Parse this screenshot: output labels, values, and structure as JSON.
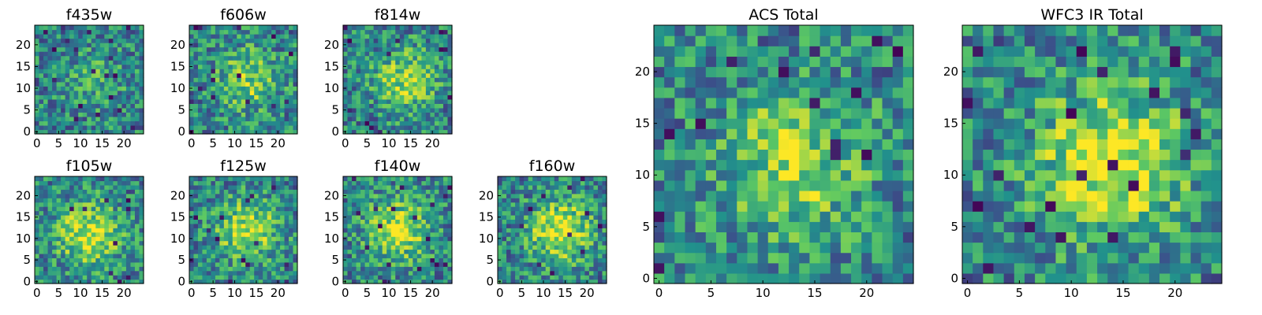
{
  "chart_data": [
    {
      "type": "heatmap",
      "title": "f435w",
      "grid": [
        25,
        25
      ],
      "xlim": [
        0,
        25
      ],
      "ylim": [
        0,
        25
      ],
      "xticks": [
        0,
        5,
        10,
        15,
        20
      ],
      "yticks": [
        0,
        5,
        10,
        15,
        20
      ],
      "colormap": "viridis"
    },
    {
      "type": "heatmap",
      "title": "f606w",
      "grid": [
        25,
        25
      ],
      "xlim": [
        0,
        25
      ],
      "ylim": [
        0,
        25
      ],
      "xticks": [
        0,
        5,
        10,
        15,
        20
      ],
      "yticks": [
        0,
        5,
        10,
        15,
        20
      ],
      "colormap": "viridis"
    },
    {
      "type": "heatmap",
      "title": "f814w",
      "grid": [
        25,
        25
      ],
      "xlim": [
        0,
        25
      ],
      "ylim": [
        0,
        25
      ],
      "xticks": [
        0,
        5,
        10,
        15,
        20
      ],
      "yticks": [
        0,
        5,
        10,
        15,
        20
      ],
      "colormap": "viridis"
    },
    {
      "type": "heatmap",
      "title": "f105w",
      "grid": [
        25,
        25
      ],
      "xlim": [
        0,
        25
      ],
      "ylim": [
        0,
        25
      ],
      "xticks": [
        0,
        5,
        10,
        15,
        20
      ],
      "yticks": [
        0,
        5,
        10,
        15,
        20
      ],
      "colormap": "viridis"
    },
    {
      "type": "heatmap",
      "title": "f125w",
      "grid": [
        25,
        25
      ],
      "xlim": [
        0,
        25
      ],
      "ylim": [
        0,
        25
      ],
      "xticks": [
        0,
        5,
        10,
        15,
        20
      ],
      "yticks": [
        0,
        5,
        10,
        15,
        20
      ],
      "colormap": "viridis"
    },
    {
      "type": "heatmap",
      "title": "f140w",
      "grid": [
        25,
        25
      ],
      "xlim": [
        0,
        25
      ],
      "ylim": [
        0,
        25
      ],
      "xticks": [
        0,
        5,
        10,
        15,
        20
      ],
      "yticks": [
        0,
        5,
        10,
        15,
        20
      ],
      "colormap": "viridis"
    },
    {
      "type": "heatmap",
      "title": "f160w",
      "grid": [
        25,
        25
      ],
      "xlim": [
        0,
        25
      ],
      "ylim": [
        0,
        25
      ],
      "xticks": [
        0,
        5,
        10,
        15,
        20
      ],
      "yticks": [
        0,
        5,
        10,
        15,
        20
      ],
      "colormap": "viridis"
    },
    {
      "type": "heatmap",
      "title": "ACS Total",
      "grid": [
        25,
        25
      ],
      "xlim": [
        0,
        25
      ],
      "ylim": [
        0,
        25
      ],
      "xticks": [
        0,
        5,
        10,
        15,
        20
      ],
      "yticks": [
        0,
        5,
        10,
        15,
        20
      ],
      "colormap": "viridis"
    },
    {
      "type": "heatmap",
      "title": "WFC3 IR Total",
      "grid": [
        25,
        25
      ],
      "xlim": [
        0,
        25
      ],
      "ylim": [
        0,
        25
      ],
      "xticks": [
        0,
        5,
        10,
        15,
        20
      ],
      "yticks": [
        0,
        5,
        10,
        15,
        20
      ],
      "colormap": "viridis"
    }
  ],
  "colors": {
    "low": "#440154",
    "mid_low": "#31688e",
    "mid": "#21918c",
    "mid_high": "#5ec962",
    "high": "#fde725"
  }
}
